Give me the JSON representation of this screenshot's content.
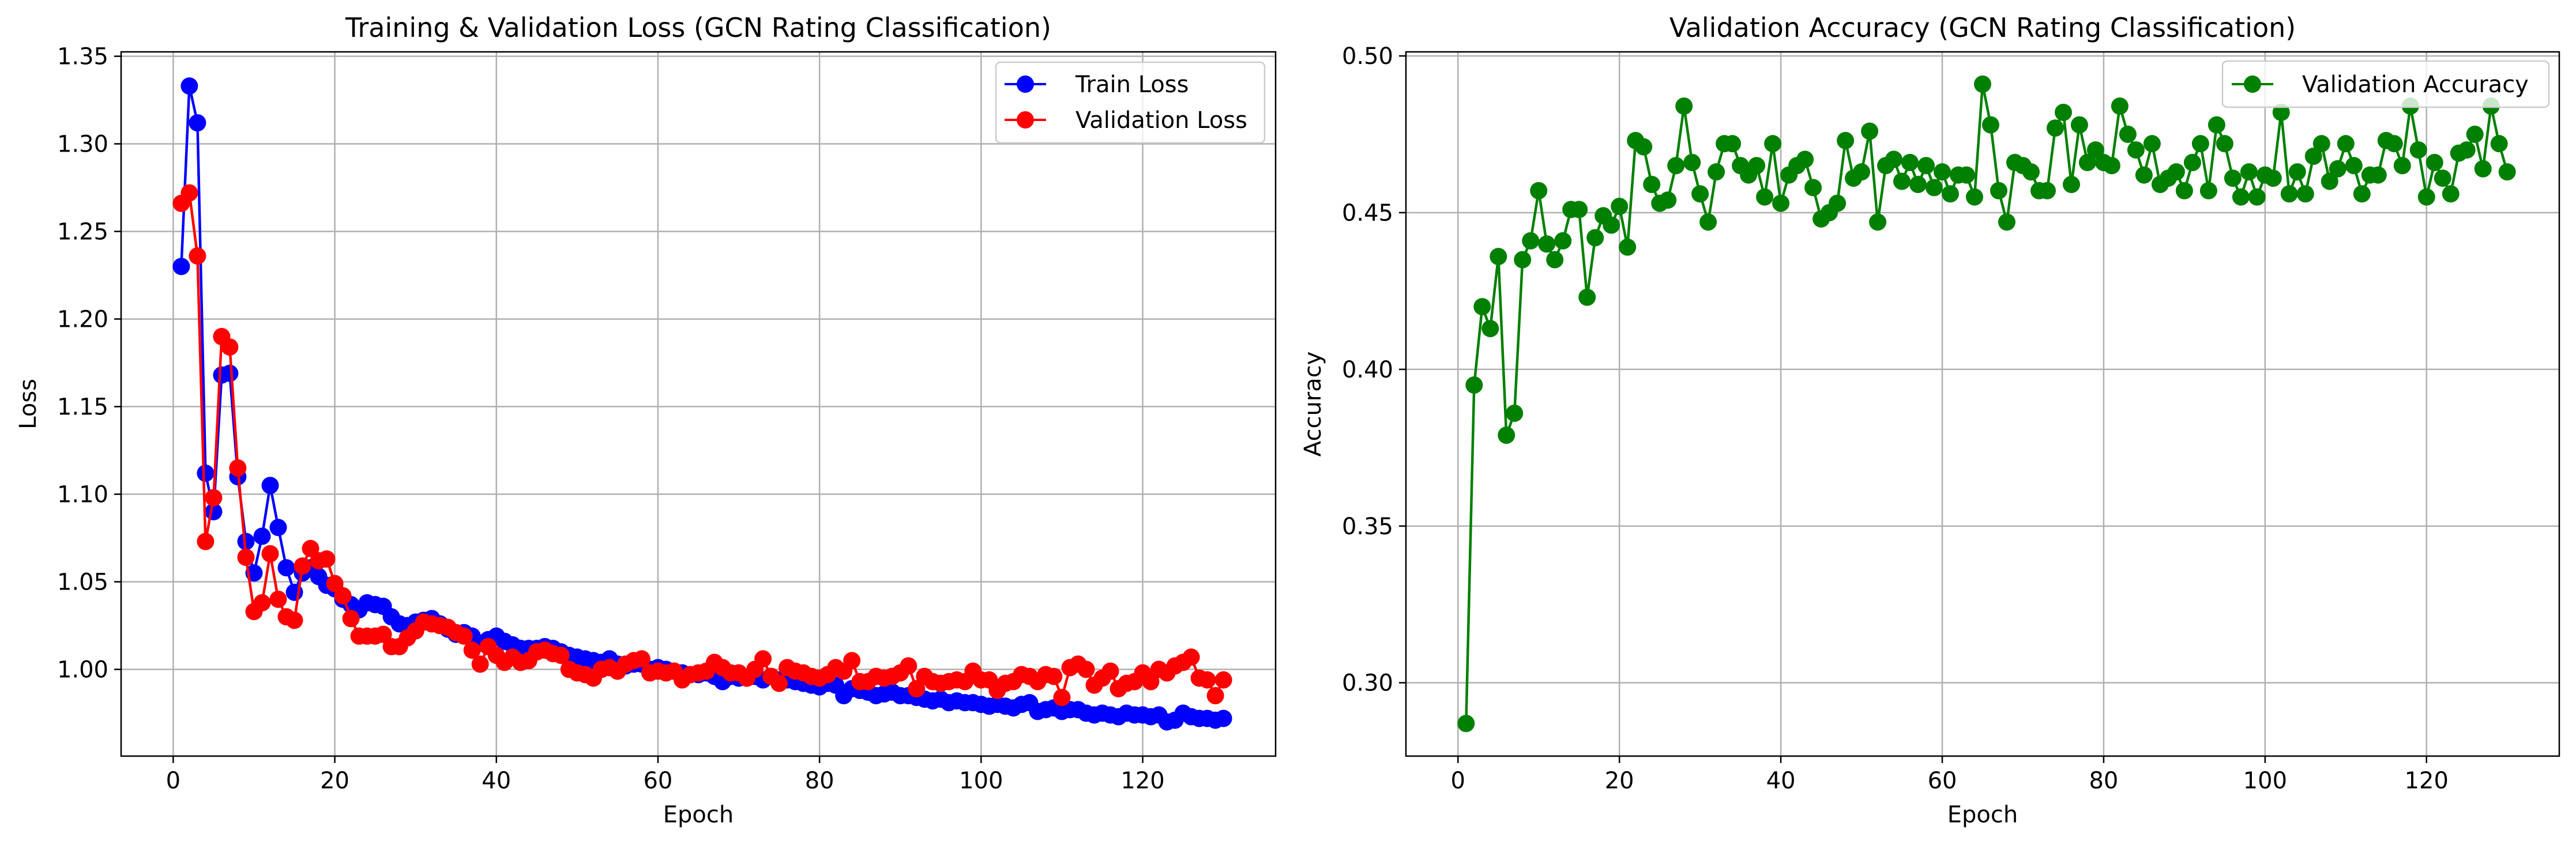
{
  "chart_data": [
    {
      "type": "line",
      "title": "Training & Validation Loss (GCN Rating Classification)",
      "xlabel": "Epoch",
      "ylabel": "Loss",
      "xlim": [
        -6.45,
        136.45
      ],
      "ylim": [
        0.9505,
        1.3525
      ],
      "xticks": [
        0,
        20,
        40,
        60,
        80,
        100,
        120
      ],
      "xtick_labels": [
        "0",
        "20",
        "40",
        "60",
        "80",
        "100",
        "120"
      ],
      "yticks": [
        1.0,
        1.05,
        1.1,
        1.15,
        1.2,
        1.25,
        1.3,
        1.35
      ],
      "ytick_labels": [
        "1.00",
        "1.05",
        "1.10",
        "1.15",
        "1.20",
        "1.25",
        "1.30",
        "1.35"
      ],
      "grid": true,
      "legend_position": "upper right",
      "series": [
        {
          "name": "Train Loss",
          "color": "#0000ff",
          "x": [
            1,
            2,
            3,
            4,
            5,
            6,
            7,
            8,
            9,
            10,
            11,
            12,
            13,
            14,
            15,
            16,
            17,
            18,
            19,
            20,
            21,
            22,
            23,
            24,
            25,
            26,
            27,
            28,
            29,
            30,
            31,
            32,
            33,
            34,
            35,
            36,
            37,
            38,
            39,
            40,
            41,
            42,
            43,
            44,
            45,
            46,
            47,
            48,
            49,
            50,
            51,
            52,
            53,
            54,
            55,
            56,
            57,
            58,
            59,
            60,
            61,
            62,
            63,
            64,
            65,
            66,
            67,
            68,
            69,
            70,
            71,
            72,
            73,
            74,
            75,
            76,
            77,
            78,
            79,
            80,
            81,
            82,
            83,
            84,
            85,
            86,
            87,
            88,
            89,
            90,
            91,
            92,
            93,
            94,
            95,
            96,
            97,
            98,
            99,
            100,
            101,
            102,
            103,
            104,
            105,
            106,
            107,
            108,
            109,
            110,
            111,
            112,
            113,
            114,
            115,
            116,
            117,
            118,
            119,
            120,
            121,
            122,
            123,
            124,
            125,
            126,
            127,
            128,
            129,
            130
          ],
          "values": [
            1.23,
            1.333,
            1.312,
            1.112,
            1.09,
            1.168,
            1.169,
            1.11,
            1.073,
            1.055,
            1.076,
            1.105,
            1.081,
            1.058,
            1.044,
            1.055,
            1.058,
            1.053,
            1.048,
            1.046,
            1.04,
            1.037,
            1.034,
            1.038,
            1.037,
            1.036,
            1.03,
            1.026,
            1.025,
            1.027,
            1.028,
            1.029,
            1.026,
            1.023,
            1.02,
            1.021,
            1.019,
            1.015,
            1.017,
            1.019,
            1.016,
            1.014,
            1.012,
            1.012,
            1.012,
            1.013,
            1.012,
            1.01,
            1.008,
            1.007,
            1.006,
            1.005,
            1.004,
            1.006,
            1.003,
            1.002,
            1.003,
            1.003,
            1.0,
            1.001,
            1.0,
            0.999,
            0.998,
            0.997,
            0.997,
            0.998,
            0.996,
            0.993,
            0.996,
            0.995,
            0.995,
            0.996,
            0.994,
            0.996,
            0.994,
            0.994,
            0.993,
            0.992,
            0.991,
            0.99,
            0.992,
            0.991,
            0.985,
            0.989,
            0.988,
            0.987,
            0.985,
            0.986,
            0.987,
            0.985,
            0.985,
            0.984,
            0.983,
            0.982,
            0.983,
            0.981,
            0.982,
            0.981,
            0.981,
            0.98,
            0.979,
            0.98,
            0.979,
            0.978,
            0.98,
            0.981,
            0.976,
            0.977,
            0.978,
            0.976,
            0.977,
            0.977,
            0.975,
            0.974,
            0.975,
            0.974,
            0.973,
            0.975,
            0.974,
            0.974,
            0.973,
            0.974,
            0.97,
            0.971,
            0.975,
            0.973,
            0.972,
            0.972,
            0.971,
            0.972
          ]
        },
        {
          "name": "Validation Loss",
          "color": "#ff0000",
          "x": [
            1,
            2,
            3,
            4,
            5,
            6,
            7,
            8,
            9,
            10,
            11,
            12,
            13,
            14,
            15,
            16,
            17,
            18,
            19,
            20,
            21,
            22,
            23,
            24,
            25,
            26,
            27,
            28,
            29,
            30,
            31,
            32,
            33,
            34,
            35,
            36,
            37,
            38,
            39,
            40,
            41,
            42,
            43,
            44,
            45,
            46,
            47,
            48,
            49,
            50,
            51,
            52,
            53,
            54,
            55,
            56,
            57,
            58,
            59,
            60,
            61,
            62,
            63,
            64,
            65,
            66,
            67,
            68,
            69,
            70,
            71,
            72,
            73,
            74,
            75,
            76,
            77,
            78,
            79,
            80,
            81,
            82,
            83,
            84,
            85,
            86,
            87,
            88,
            89,
            90,
            91,
            92,
            93,
            94,
            95,
            96,
            97,
            98,
            99,
            100,
            101,
            102,
            103,
            104,
            105,
            106,
            107,
            108,
            109,
            110,
            111,
            112,
            113,
            114,
            115,
            116,
            117,
            118,
            119,
            120,
            121,
            122,
            123,
            124,
            125,
            126,
            127,
            128,
            129,
            130
          ],
          "values": [
            1.266,
            1.272,
            1.236,
            1.073,
            1.098,
            1.19,
            1.184,
            1.115,
            1.064,
            1.033,
            1.038,
            1.066,
            1.04,
            1.03,
            1.028,
            1.059,
            1.069,
            1.062,
            1.063,
            1.049,
            1.042,
            1.029,
            1.019,
            1.019,
            1.019,
            1.02,
            1.013,
            1.013,
            1.018,
            1.022,
            1.027,
            1.026,
            1.025,
            1.024,
            1.021,
            1.019,
            1.011,
            1.003,
            1.013,
            1.008,
            1.004,
            1.007,
            1.004,
            1.005,
            1.01,
            1.011,
            1.009,
            1.008,
            1.0,
            0.998,
            0.997,
            0.995,
            1.0,
            1.001,
            0.999,
            1.003,
            1.005,
            1.006,
            0.998,
            0.999,
            0.998,
            0.999,
            0.994,
            0.997,
            0.998,
            0.999,
            1.004,
            1.001,
            0.998,
            0.998,
            0.995,
            1.0,
            1.006,
            0.996,
            0.992,
            1.001,
            0.999,
            0.998,
            0.996,
            0.995,
            0.997,
            1.001,
            0.999,
            1.005,
            0.993,
            0.993,
            0.996,
            0.995,
            0.996,
            0.998,
            1.002,
            0.989,
            0.996,
            0.993,
            0.992,
            0.993,
            0.994,
            0.993,
            0.999,
            0.994,
            0.994,
            0.988,
            0.992,
            0.993,
            0.997,
            0.996,
            0.993,
            0.997,
            0.996,
            0.984,
            1.001,
            1.003,
            1.0,
            0.991,
            0.995,
            0.999,
            0.989,
            0.992,
            0.993,
            0.998,
            0.993,
            1.0,
            0.998,
            1.002,
            1.004,
            1.007,
            0.995,
            0.994,
            0.985,
            0.994
          ]
        }
      ]
    },
    {
      "type": "line",
      "title": "Validation Accuracy (GCN Rating Classification)",
      "xlabel": "Epoch",
      "ylabel": "Accuracy",
      "xlim": [
        -6.45,
        136.45
      ],
      "ylim": [
        0.2766,
        0.5013
      ],
      "xticks": [
        0,
        20,
        40,
        60,
        80,
        100,
        120
      ],
      "xtick_labels": [
        "0",
        "20",
        "40",
        "60",
        "80",
        "100",
        "120"
      ],
      "yticks": [
        0.3,
        0.35,
        0.4,
        0.45,
        0.5
      ],
      "ytick_labels": [
        "0.30",
        "0.35",
        "0.40",
        "0.45",
        "0.50"
      ],
      "grid": true,
      "legend_position": "upper right",
      "series": [
        {
          "name": "Validation Accuracy",
          "color": "#008000",
          "x": [
            1,
            2,
            3,
            4,
            5,
            6,
            7,
            8,
            9,
            10,
            11,
            12,
            13,
            14,
            15,
            16,
            17,
            18,
            19,
            20,
            21,
            22,
            23,
            24,
            25,
            26,
            27,
            28,
            29,
            30,
            31,
            32,
            33,
            34,
            35,
            36,
            37,
            38,
            39,
            40,
            41,
            42,
            43,
            44,
            45,
            46,
            47,
            48,
            49,
            50,
            51,
            52,
            53,
            54,
            55,
            56,
            57,
            58,
            59,
            60,
            61,
            62,
            63,
            64,
            65,
            66,
            67,
            68,
            69,
            70,
            71,
            72,
            73,
            74,
            75,
            76,
            77,
            78,
            79,
            80,
            81,
            82,
            83,
            84,
            85,
            86,
            87,
            88,
            89,
            90,
            91,
            92,
            93,
            94,
            95,
            96,
            97,
            98,
            99,
            100,
            101,
            102,
            103,
            104,
            105,
            106,
            107,
            108,
            109,
            110,
            111,
            112,
            113,
            114,
            115,
            116,
            117,
            118,
            119,
            120,
            121,
            122,
            123,
            124,
            125,
            126,
            127,
            128,
            129,
            130
          ],
          "values": [
            0.287,
            0.395,
            0.42,
            0.413,
            0.436,
            0.379,
            0.386,
            0.435,
            0.441,
            0.457,
            0.44,
            0.435,
            0.441,
            0.451,
            0.451,
            0.423,
            0.442,
            0.449,
            0.446,
            0.452,
            0.439,
            0.473,
            0.471,
            0.459,
            0.453,
            0.454,
            0.465,
            0.484,
            0.466,
            0.456,
            0.447,
            0.463,
            0.472,
            0.472,
            0.465,
            0.462,
            0.465,
            0.455,
            0.472,
            0.453,
            0.462,
            0.465,
            0.467,
            0.458,
            0.448,
            0.45,
            0.453,
            0.473,
            0.461,
            0.463,
            0.476,
            0.447,
            0.465,
            0.467,
            0.46,
            0.466,
            0.459,
            0.465,
            0.458,
            0.463,
            0.456,
            0.462,
            0.462,
            0.455,
            0.491,
            0.478,
            0.457,
            0.447,
            0.466,
            0.465,
            0.463,
            0.457,
            0.457,
            0.477,
            0.482,
            0.459,
            0.478,
            0.466,
            0.47,
            0.466,
            0.465,
            0.484,
            0.475,
            0.47,
            0.462,
            0.472,
            0.459,
            0.461,
            0.463,
            0.457,
            0.466,
            0.472,
            0.457,
            0.478,
            0.472,
            0.461,
            0.455,
            0.463,
            0.455,
            0.462,
            0.461,
            0.482,
            0.456,
            0.463,
            0.456,
            0.468,
            0.472,
            0.46,
            0.464,
            0.472,
            0.465,
            0.456,
            0.462,
            0.462,
            0.473,
            0.472,
            0.465,
            0.484,
            0.47,
            0.455,
            0.466,
            0.461,
            0.456,
            0.469,
            0.47,
            0.475,
            0.464,
            0.484,
            0.472,
            0.463
          ]
        }
      ]
    }
  ]
}
